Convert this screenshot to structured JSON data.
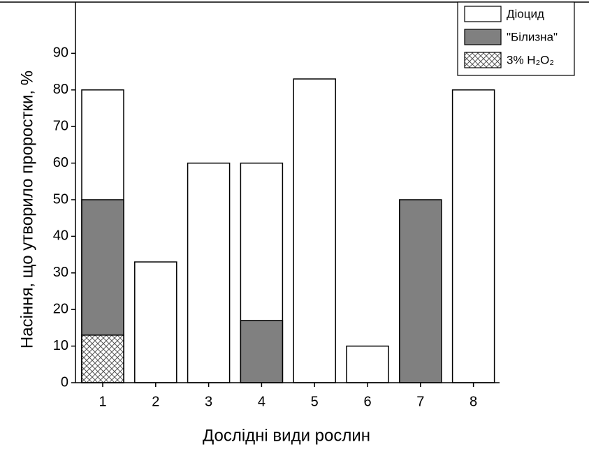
{
  "chart_data": {
    "type": "bar",
    "overlap": true,
    "x_label": "Дослідні види рослин",
    "y_label": "Насіння, що утворило проростки, %",
    "categories": [
      "1",
      "2",
      "3",
      "4",
      "5",
      "6",
      "7",
      "8"
    ],
    "series": [
      {
        "name": "Діоцид",
        "color": "#ffffff",
        "values": [
          80,
          33,
          60,
          60,
          83,
          10,
          null,
          80
        ]
      },
      {
        "name": "\"Білизна\"",
        "color": "#808080",
        "values": [
          50,
          null,
          null,
          17,
          null,
          null,
          50,
          null
        ]
      },
      {
        "name": "3% H₂O₂",
        "color": "#ffffff",
        "pattern": "crosshatch",
        "values": [
          13,
          null,
          null,
          null,
          null,
          null,
          null,
          null
        ]
      }
    ],
    "ylim": [
      0,
      104
    ],
    "yticks": [
      0,
      10,
      20,
      30,
      40,
      50,
      60,
      70,
      80,
      90
    ],
    "legend": "top-right"
  }
}
